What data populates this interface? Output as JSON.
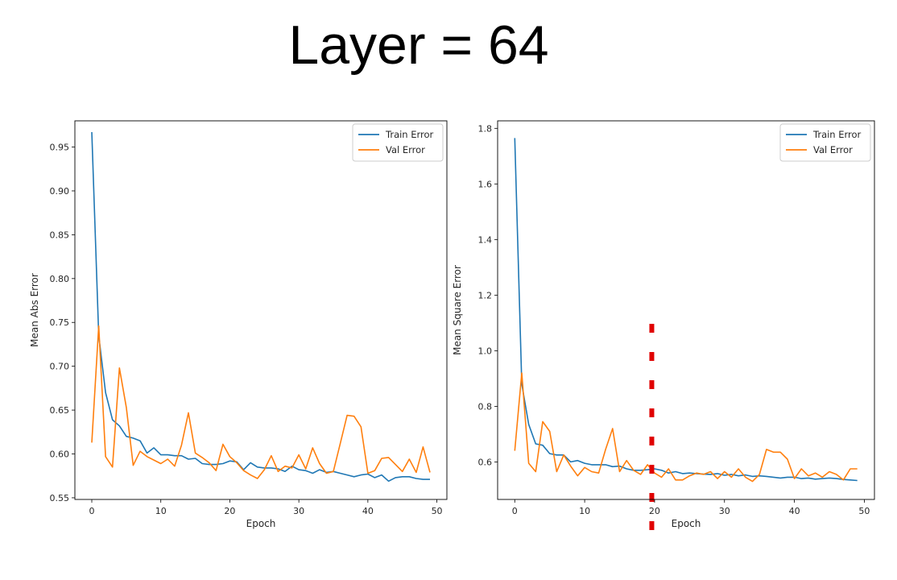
{
  "slide": {
    "title": "Layer = 64"
  },
  "chart_data": [
    {
      "type": "line",
      "title": "",
      "xlabel": "Epoch",
      "ylabel": "Mean Abs Error",
      "xlim": [
        -2.45,
        51.45
      ],
      "ylim": [
        0.5481,
        0.9799
      ],
      "x_ticks": [
        0,
        10,
        20,
        30,
        40,
        50
      ],
      "x_tick_labels": [
        "0",
        "10",
        "20",
        "30",
        "40",
        "50"
      ],
      "y_ticks": [
        0.55,
        0.6,
        0.65,
        0.7,
        0.75,
        0.8,
        0.85,
        0.9,
        0.95
      ],
      "y_tick_labels": [
        "0.55",
        "0.60",
        "0.65",
        "0.70",
        "0.75",
        "0.80",
        "0.85",
        "0.90",
        "0.95"
      ],
      "grid": false,
      "legend": "top-right",
      "series": [
        {
          "name": "Train Error",
          "color": "#1f77b4",
          "x": [
            0,
            1,
            2,
            3,
            4,
            5,
            6,
            7,
            8,
            9,
            10,
            11,
            12,
            13,
            14,
            15,
            16,
            17,
            18,
            19,
            20,
            21,
            22,
            23,
            24,
            25,
            26,
            27,
            28,
            29,
            30,
            31,
            32,
            33,
            34,
            35,
            36,
            37,
            38,
            39,
            40,
            41,
            42,
            43,
            44,
            45,
            46,
            47,
            48,
            49
          ],
          "values": [
            0.967,
            0.735,
            0.67,
            0.639,
            0.632,
            0.62,
            0.618,
            0.615,
            0.601,
            0.607,
            0.599,
            0.599,
            0.598,
            0.598,
            0.594,
            0.595,
            0.589,
            0.588,
            0.588,
            0.589,
            0.592,
            0.591,
            0.582,
            0.59,
            0.585,
            0.584,
            0.584,
            0.583,
            0.58,
            0.586,
            0.582,
            0.581,
            0.578,
            0.582,
            0.579,
            0.58,
            0.578,
            0.576,
            0.574,
            0.576,
            0.577,
            0.573,
            0.576,
            0.569,
            0.573,
            0.574,
            0.574,
            0.572,
            0.571,
            0.571
          ]
        },
        {
          "name": "Val Error",
          "color": "#ff7f0e",
          "x": [
            0,
            1,
            2,
            3,
            4,
            5,
            6,
            7,
            8,
            9,
            10,
            11,
            12,
            13,
            14,
            15,
            16,
            17,
            18,
            19,
            20,
            21,
            22,
            23,
            24,
            25,
            26,
            27,
            28,
            29,
            30,
            31,
            32,
            33,
            34,
            35,
            36,
            37,
            38,
            39,
            40,
            41,
            42,
            43,
            44,
            45,
            46,
            47,
            48,
            49
          ],
          "values": [
            0.613,
            0.746,
            0.597,
            0.585,
            0.698,
            0.653,
            0.587,
            0.603,
            0.597,
            0.593,
            0.589,
            0.594,
            0.586,
            0.61,
            0.647,
            0.601,
            0.596,
            0.59,
            0.581,
            0.611,
            0.597,
            0.59,
            0.581,
            0.576,
            0.572,
            0.582,
            0.598,
            0.58,
            0.586,
            0.584,
            0.599,
            0.583,
            0.607,
            0.589,
            0.578,
            0.58,
            0.612,
            0.644,
            0.643,
            0.631,
            0.578,
            0.581,
            0.595,
            0.596,
            0.588,
            0.58,
            0.594,
            0.579,
            0.608,
            0.579
          ]
        }
      ]
    },
    {
      "type": "line",
      "title": "",
      "xlabel": "Epoch",
      "ylabel": "Mean Square Error",
      "xlim": [
        -2.45,
        51.45
      ],
      "ylim": [
        0.465,
        1.827
      ],
      "x_ticks": [
        0,
        10,
        20,
        30,
        40,
        50
      ],
      "x_tick_labels": [
        "0",
        "10",
        "20",
        "30",
        "40",
        "50"
      ],
      "y_ticks": [
        0.6,
        0.8,
        1.0,
        1.2,
        1.4,
        1.6,
        1.8
      ],
      "y_tick_labels": [
        "0.6",
        "0.8",
        "1.0",
        "1.2",
        "1.4",
        "1.6",
        "1.8"
      ],
      "grid": false,
      "legend": "top-right",
      "annotation": {
        "type": "vertical-dashed-line",
        "x": 19.6,
        "color": "#e00000"
      },
      "series": [
        {
          "name": "Train Error",
          "color": "#1f77b4",
          "x": [
            0,
            1,
            2,
            3,
            4,
            5,
            6,
            7,
            8,
            9,
            10,
            11,
            12,
            13,
            14,
            15,
            16,
            17,
            18,
            19,
            20,
            21,
            22,
            23,
            24,
            25,
            26,
            27,
            28,
            29,
            30,
            31,
            32,
            33,
            34,
            35,
            36,
            37,
            38,
            39,
            40,
            41,
            42,
            43,
            44,
            45,
            46,
            47,
            48,
            49
          ],
          "values": [
            1.765,
            0.88,
            0.735,
            0.665,
            0.66,
            0.63,
            0.625,
            0.625,
            0.6,
            0.605,
            0.595,
            0.59,
            0.59,
            0.59,
            0.583,
            0.585,
            0.575,
            0.57,
            0.57,
            0.572,
            0.575,
            0.57,
            0.56,
            0.565,
            0.558,
            0.56,
            0.558,
            0.556,
            0.555,
            0.558,
            0.552,
            0.555,
            0.55,
            0.553,
            0.548,
            0.55,
            0.548,
            0.545,
            0.542,
            0.545,
            0.545,
            0.54,
            0.542,
            0.538,
            0.54,
            0.542,
            0.54,
            0.537,
            0.535,
            0.533
          ]
        },
        {
          "name": "Val Error",
          "color": "#ff7f0e",
          "x": [
            0,
            1,
            2,
            3,
            4,
            5,
            6,
            7,
            8,
            9,
            10,
            11,
            12,
            13,
            14,
            15,
            16,
            17,
            18,
            19,
            20,
            21,
            22,
            23,
            24,
            25,
            26,
            27,
            28,
            29,
            30,
            31,
            32,
            33,
            34,
            35,
            36,
            37,
            38,
            39,
            40,
            41,
            42,
            43,
            44,
            45,
            46,
            47,
            48,
            49
          ],
          "values": [
            0.64,
            0.92,
            0.595,
            0.565,
            0.745,
            0.71,
            0.565,
            0.625,
            0.585,
            0.55,
            0.58,
            0.565,
            0.56,
            0.645,
            0.72,
            0.565,
            0.605,
            0.57,
            0.555,
            0.59,
            0.56,
            0.545,
            0.575,
            0.535,
            0.535,
            0.55,
            0.56,
            0.555,
            0.565,
            0.54,
            0.565,
            0.545,
            0.575,
            0.545,
            0.53,
            0.555,
            0.645,
            0.635,
            0.635,
            0.61,
            0.54,
            0.575,
            0.55,
            0.56,
            0.545,
            0.565,
            0.555,
            0.535,
            0.575,
            0.575
          ]
        }
      ]
    }
  ]
}
